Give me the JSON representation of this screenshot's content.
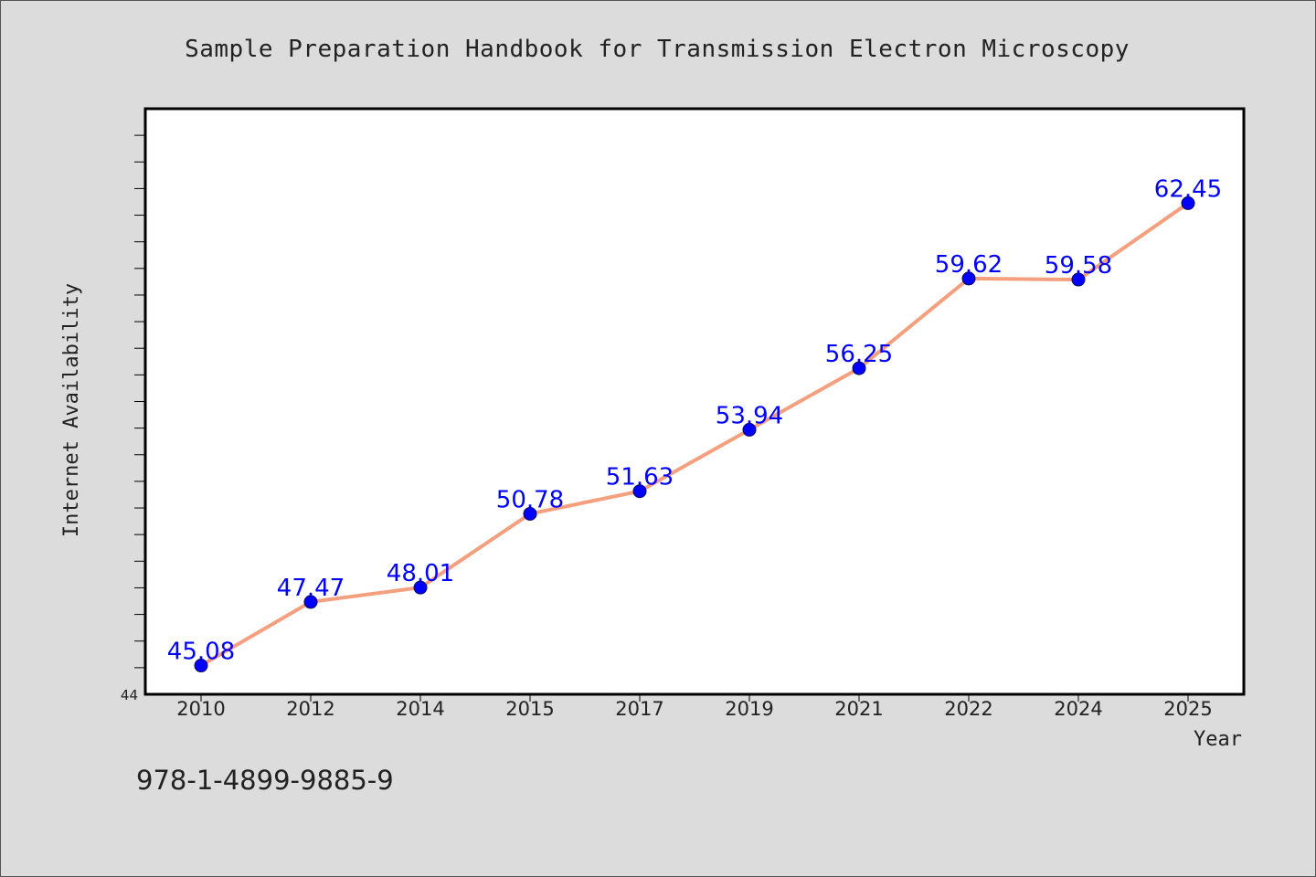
{
  "header": {
    "title": "Sample Preparation Handbook for Transmission Electron Microscopy"
  },
  "footer": {
    "isbn": "978-1-4899-9885-9"
  },
  "colors": {
    "background": "#dcdcdc",
    "plot_background": "#ffffff",
    "line": "#f4a07f",
    "marker": "#0000ff",
    "data_label": "#0000ff"
  },
  "chart_data": {
    "type": "line",
    "title": "Sample Preparation Handbook for Transmission Electron Microscopy",
    "xlabel": "Year",
    "ylabel": "Internet Availability",
    "categories": [
      "2010",
      "2012",
      "2014",
      "2015",
      "2017",
      "2019",
      "2021",
      "2022",
      "2024",
      "2025"
    ],
    "series": [
      {
        "values": [
          45.08,
          47.47,
          48.01,
          50.78,
          51.63,
          53.94,
          56.25,
          59.62,
          59.58,
          62.45
        ]
      }
    ],
    "data_labels": [
      "45.08",
      "47.47",
      "48.01",
      "50.78",
      "51.63",
      "53.94",
      "56.25",
      "59.62",
      "59.58",
      "62.45"
    ],
    "ylim": [
      44,
      66
    ],
    "y_tick_labels": [
      "44"
    ],
    "y_minor_tick_step": 1,
    "grid": false,
    "legend": "none",
    "markers": "circle"
  }
}
